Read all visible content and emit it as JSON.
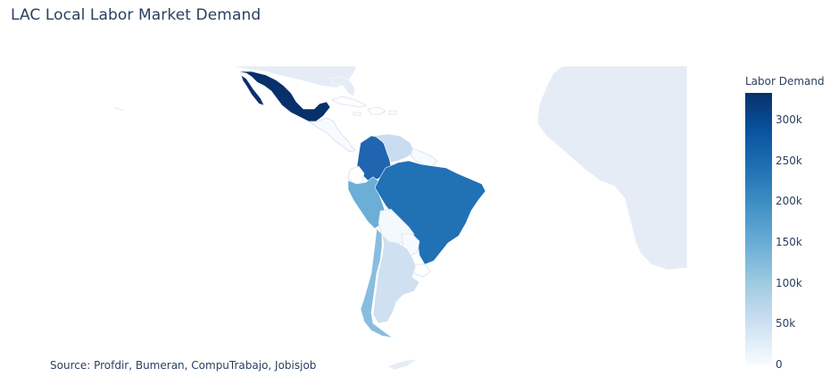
{
  "title": "LAC Local Labor Market Demand",
  "source": "Source: Profdir, Bumeran, CompuTrabajo, Jobisjob",
  "colorbar": {
    "title": "Labor Demand",
    "ticks": [
      {
        "label": "300k",
        "value": 300000
      },
      {
        "label": "250k",
        "value": 250000
      },
      {
        "label": "200k",
        "value": 200000
      },
      {
        "label": "150k",
        "value": 150000
      },
      {
        "label": "100k",
        "value": 100000
      },
      {
        "label": "50k",
        "value": 50000
      },
      {
        "label": "0",
        "value": 0
      }
    ],
    "max": 333000,
    "min": 0,
    "colorscale": "Blues"
  },
  "colors": {
    "land": "#e5ecf6",
    "border": "#ffffff",
    "mexico": "#08306b",
    "brazil": "#2171b5",
    "colombia": "#1f65b0",
    "peru": "#6baed6",
    "chile": "#89bde0",
    "argentina": "#cfe0f1",
    "venezuela": "#cadcef",
    "bolivia": "#f4f9fe",
    "uruguay": "#ffffff",
    "ecuador": "#ffffff",
    "central_america": "#f7fbff"
  }
}
